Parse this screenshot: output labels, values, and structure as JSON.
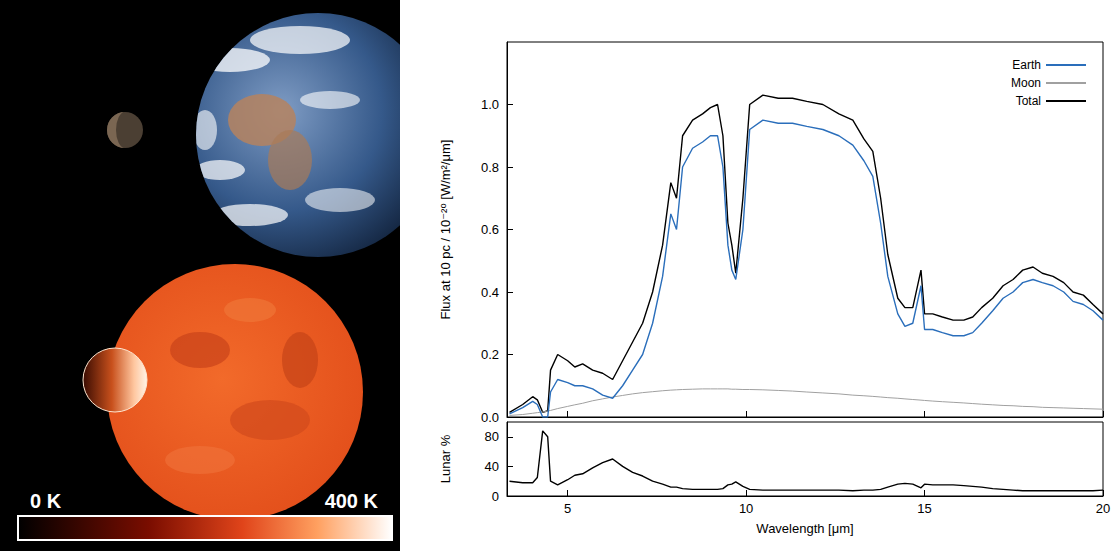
{
  "image_panel": {
    "colorbar": {
      "range": [
        0,
        400
      ],
      "ticks": [
        {
          "value": 0,
          "label": "0 K"
        },
        {
          "value": 400,
          "label": "400 K"
        }
      ]
    }
  },
  "chart_data": [
    {
      "type": "line",
      "ylabel": "Flux at 10 pc / 10⁻²⁰ [W/m²/μm]",
      "x": [
        3.37,
        3.74,
        4.02,
        4.15,
        4.3,
        4.44,
        4.52,
        4.72,
        5.0,
        5.2,
        5.42,
        5.7,
        5.98,
        6.26,
        6.54,
        6.82,
        7.1,
        7.38,
        7.66,
        7.89,
        8.05,
        8.22,
        8.5,
        8.78,
        9.0,
        9.2,
        9.35,
        9.49,
        9.6,
        9.71,
        9.91,
        10.1,
        10.47,
        10.9,
        11.3,
        11.7,
        12.15,
        12.6,
        12.99,
        13.3,
        13.55,
        13.77,
        13.97,
        14.25,
        14.45,
        14.67,
        14.9,
        15.0,
        15.23,
        15.5,
        15.8,
        16.1,
        16.35,
        16.6,
        16.91,
        17.2,
        17.48,
        17.75,
        18.04,
        18.3,
        18.6,
        18.9,
        19.16,
        19.45,
        19.72,
        20.0
      ],
      "series": [
        {
          "name": "Earth",
          "color": "#2a6ebb",
          "values": [
            0.01,
            0.03,
            0.05,
            0.04,
            0.0,
            0.0,
            0.08,
            0.12,
            0.11,
            0.1,
            0.1,
            0.09,
            0.07,
            0.06,
            0.1,
            0.15,
            0.2,
            0.3,
            0.45,
            0.65,
            0.6,
            0.8,
            0.86,
            0.88,
            0.9,
            0.9,
            0.8,
            0.55,
            0.47,
            0.44,
            0.6,
            0.92,
            0.95,
            0.94,
            0.94,
            0.93,
            0.92,
            0.9,
            0.87,
            0.82,
            0.77,
            0.62,
            0.45,
            0.33,
            0.29,
            0.3,
            0.42,
            0.28,
            0.28,
            0.27,
            0.26,
            0.26,
            0.27,
            0.3,
            0.34,
            0.38,
            0.4,
            0.43,
            0.44,
            0.43,
            0.42,
            0.4,
            0.37,
            0.36,
            0.34,
            0.31
          ]
        },
        {
          "name": "Moon",
          "color": "#a0a0a0",
          "values": [
            0.005,
            0.008,
            0.012,
            0.014,
            0.016,
            0.019,
            0.021,
            0.027,
            0.034,
            0.039,
            0.044,
            0.052,
            0.058,
            0.064,
            0.069,
            0.074,
            0.078,
            0.081,
            0.084,
            0.086,
            0.087,
            0.088,
            0.089,
            0.09,
            0.09,
            0.09,
            0.09,
            0.09,
            0.089,
            0.089,
            0.088,
            0.088,
            0.087,
            0.085,
            0.083,
            0.08,
            0.077,
            0.074,
            0.07,
            0.068,
            0.066,
            0.064,
            0.062,
            0.06,
            0.058,
            0.056,
            0.054,
            0.053,
            0.051,
            0.049,
            0.047,
            0.045,
            0.043,
            0.041,
            0.039,
            0.037,
            0.036,
            0.034,
            0.033,
            0.031,
            0.03,
            0.029,
            0.028,
            0.027,
            0.026,
            0.025
          ]
        },
        {
          "name": "Total",
          "color": "#000000",
          "values": [
            0.015,
            0.04,
            0.065,
            0.055,
            0.015,
            0.02,
            0.15,
            0.2,
            0.18,
            0.16,
            0.17,
            0.15,
            0.14,
            0.12,
            0.18,
            0.24,
            0.3,
            0.4,
            0.55,
            0.75,
            0.7,
            0.9,
            0.95,
            0.97,
            0.99,
            1.0,
            0.9,
            0.62,
            0.55,
            0.46,
            0.7,
            1.0,
            1.03,
            1.02,
            1.02,
            1.01,
            1.0,
            0.97,
            0.95,
            0.89,
            0.85,
            0.7,
            0.52,
            0.38,
            0.35,
            0.35,
            0.47,
            0.33,
            0.33,
            0.32,
            0.31,
            0.31,
            0.32,
            0.35,
            0.38,
            0.42,
            0.44,
            0.47,
            0.48,
            0.46,
            0.45,
            0.43,
            0.4,
            0.39,
            0.36,
            0.33
          ]
        }
      ],
      "xlim": [
        3.3,
        20
      ],
      "xticks": [
        5,
        10,
        15,
        20
      ],
      "ylim": [
        0,
        1.2
      ],
      "yticks": [
        {
          "value": 0,
          "label": "0.0"
        },
        0.2,
        0.4,
        0.6,
        0.8,
        {
          "value": 1,
          "label": "1.0"
        }
      ],
      "tick_labels": "y",
      "grid": false,
      "legend": "upper right"
    },
    {
      "type": "line",
      "xlabel": "Wavelength [μm]",
      "ylabel": "Lunar %",
      "x": [
        3.37,
        3.74,
        4.02,
        4.15,
        4.3,
        4.44,
        4.52,
        4.72,
        5.0,
        5.2,
        5.42,
        5.7,
        5.98,
        6.26,
        6.54,
        6.82,
        7.1,
        7.38,
        7.66,
        7.89,
        8.05,
        8.22,
        8.5,
        8.78,
        9.0,
        9.2,
        9.35,
        9.49,
        9.6,
        9.71,
        9.91,
        10.1,
        10.47,
        10.9,
        11.3,
        11.7,
        12.15,
        12.6,
        12.99,
        13.3,
        13.55,
        13.77,
        13.97,
        14.25,
        14.45,
        14.67,
        14.9,
        15.0,
        15.23,
        15.5,
        15.8,
        16.1,
        16.35,
        16.6,
        16.91,
        17.2,
        17.48,
        17.75,
        18.04,
        18.3,
        18.6,
        18.9,
        19.16,
        19.45,
        19.72,
        20.0
      ],
      "values": [
        20,
        18,
        18,
        25,
        88,
        80,
        20,
        15,
        22,
        28,
        30,
        38,
        45,
        50,
        40,
        32,
        27,
        20,
        16,
        12,
        12,
        10,
        9,
        9,
        9,
        9,
        10,
        15,
        16,
        19,
        13,
        9,
        8,
        8,
        8,
        8,
        8,
        8,
        7,
        8,
        8,
        9,
        12,
        16,
        17,
        16,
        11,
        16,
        15,
        15,
        15,
        14,
        13,
        12,
        10,
        9,
        8,
        7,
        7,
        7,
        7,
        7,
        7,
        7,
        7,
        8
      ],
      "color": "#000000",
      "xlim": [
        3.3,
        20
      ],
      "xticks": [
        5,
        10,
        15,
        20
      ],
      "ylim": [
        0,
        100
      ],
      "yticks": [
        0,
        40,
        80
      ],
      "grid": false
    }
  ]
}
